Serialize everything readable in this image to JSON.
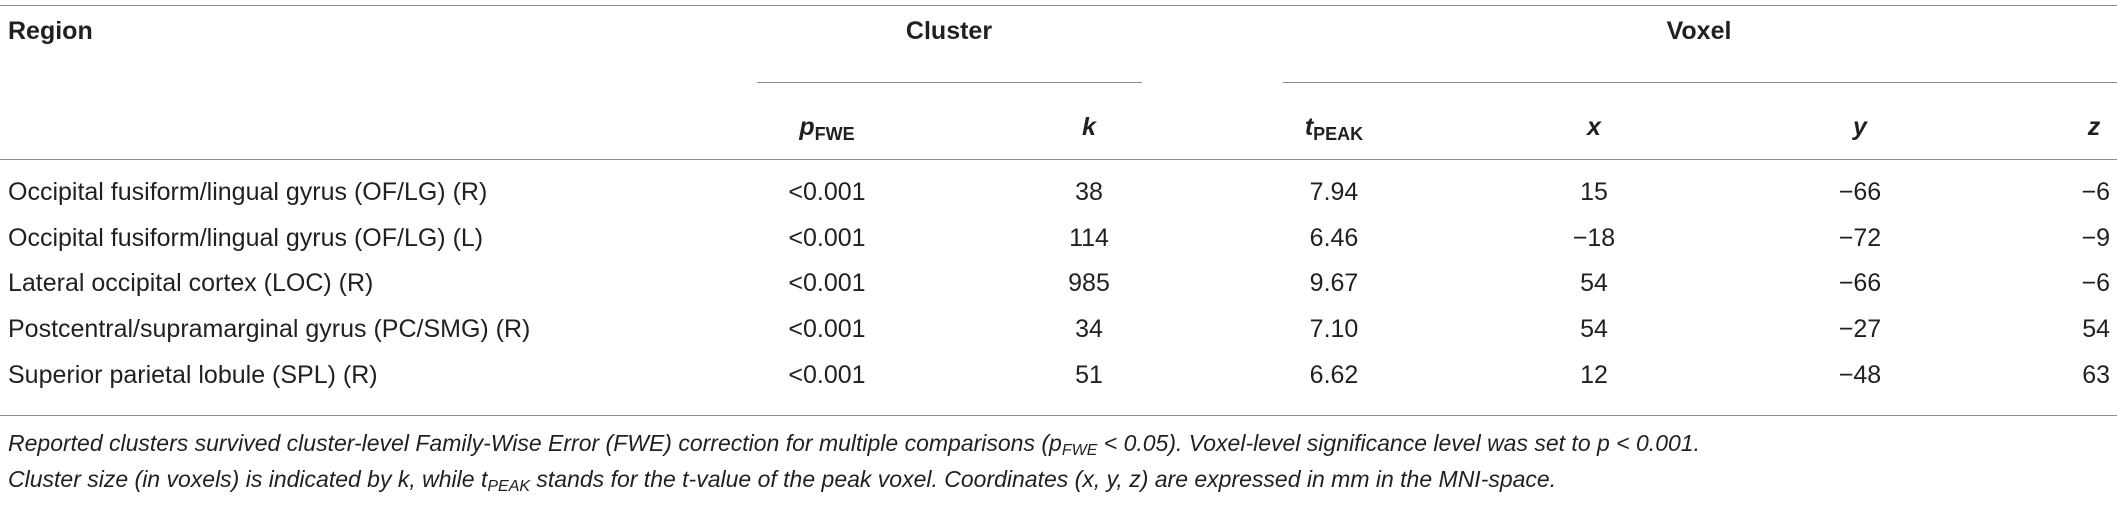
{
  "table": {
    "group_headers": {
      "region": "Region",
      "cluster": "Cluster",
      "voxel": "Voxel"
    },
    "columns": {
      "p_main": "p",
      "p_sub": "FWE",
      "k": "k",
      "t_main": "t",
      "t_sub": "PEAK",
      "x": "x",
      "y": "y",
      "z": "z"
    },
    "rows": [
      {
        "region": "Occipital fusiform/lingual gyrus (OF/LG) (R)",
        "p": "<0.001",
        "k": "38",
        "t": "7.94",
        "x": "15",
        "y": "−66",
        "z": "−6"
      },
      {
        "region": "Occipital fusiform/lingual gyrus (OF/LG) (L)",
        "p": "<0.001",
        "k": "114",
        "t": "6.46",
        "x": "−18",
        "y": "−72",
        "z": "−9"
      },
      {
        "region": "Lateral occipital cortex (LOC) (R)",
        "p": "<0.001",
        "k": "985",
        "t": "9.67",
        "x": "54",
        "y": "−66",
        "z": "−6"
      },
      {
        "region": "Postcentral/supramarginal gyrus (PC/SMG) (R)",
        "p": "<0.001",
        "k": "34",
        "t": "7.10",
        "x": "54",
        "y": "−27",
        "z": "54"
      },
      {
        "region": "Superior parietal lobule (SPL) (R)",
        "p": "<0.001",
        "k": "51",
        "t": "6.62",
        "x": "12",
        "y": "−48",
        "z": "63"
      }
    ]
  },
  "footnote": {
    "line1_a": "Reported clusters survived cluster-level Family-Wise Error (FWE) correction for multiple comparisons (p",
    "line1_sub": "FWE",
    "line1_b": " < 0.05). Voxel-level significance level was set to p < 0.001.",
    "line2_a": "Cluster size (in voxels) is indicated by k, while t",
    "line2_sub": "PEAK",
    "line2_b": " stands for the t-value of the peak voxel. Coordinates (x, y, z) are expressed in mm in the MNI-space."
  }
}
